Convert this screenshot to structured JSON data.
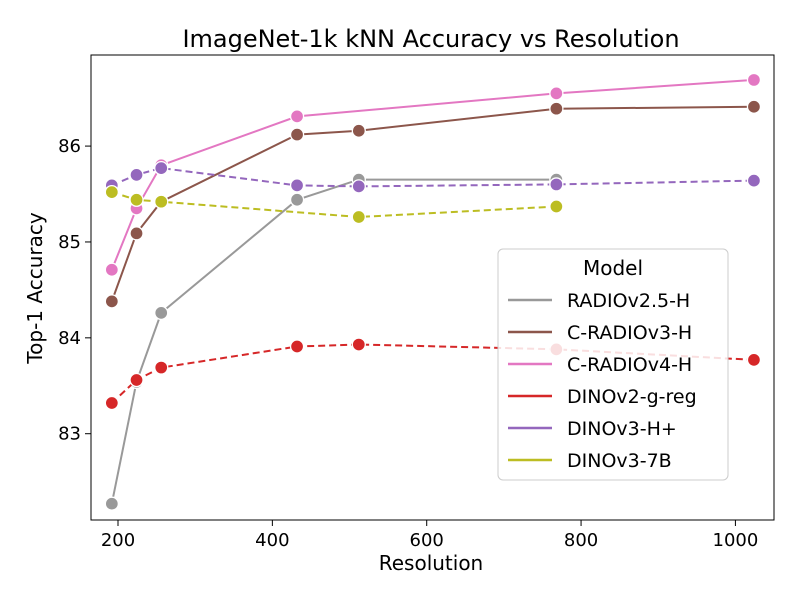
{
  "chart_data": {
    "type": "line",
    "title": "ImageNet-1k kNN Accuracy vs Resolution",
    "xlabel": "Resolution",
    "ylabel": "Top-1 Accuracy",
    "xlim": [
      165,
      1050
    ],
    "ylim": [
      82.1,
      86.95
    ],
    "xticks": [
      200,
      400,
      600,
      800,
      1000
    ],
    "yticks": [
      83,
      84,
      85,
      86
    ],
    "grid": false,
    "legend": {
      "title": "Model",
      "placement": "center-right"
    },
    "series": [
      {
        "name": "RADIOv2.5-H",
        "color": "#999999",
        "dashed": false,
        "x": [
          192,
          224,
          256,
          432,
          512,
          768
        ],
        "y": [
          82.27,
          83.54,
          84.26,
          85.44,
          85.65,
          85.65
        ]
      },
      {
        "name": "C-RADIOv3-H",
        "color": "#8c564b",
        "dashed": false,
        "x": [
          192,
          224,
          256,
          432,
          512,
          768,
          1024
        ],
        "y": [
          84.38,
          85.09,
          85.42,
          86.12,
          86.16,
          86.39,
          86.41
        ]
      },
      {
        "name": "C-RADIOv4-H",
        "color": "#e377c2",
        "dashed": false,
        "x": [
          192,
          224,
          256,
          432,
          768,
          1024
        ],
        "y": [
          84.71,
          85.35,
          85.8,
          86.31,
          86.55,
          86.69
        ]
      },
      {
        "name": "DINOv2-g-reg",
        "color": "#d62728",
        "dashed": true,
        "x": [
          192,
          224,
          256,
          432,
          512,
          768,
          1024
        ],
        "y": [
          83.32,
          83.56,
          83.69,
          83.91,
          83.93,
          83.88,
          83.77
        ]
      },
      {
        "name": "DINOv3-H+",
        "color": "#9467bd",
        "dashed": true,
        "x": [
          192,
          224,
          256,
          432,
          512,
          768,
          1024
        ],
        "y": [
          85.59,
          85.7,
          85.77,
          85.59,
          85.58,
          85.6,
          85.64
        ]
      },
      {
        "name": "DINOv3-7B",
        "color": "#bcbd22",
        "dashed": true,
        "x": [
          192,
          224,
          256,
          512,
          768
        ],
        "y": [
          85.52,
          85.44,
          85.42,
          85.26,
          85.37
        ]
      }
    ]
  }
}
